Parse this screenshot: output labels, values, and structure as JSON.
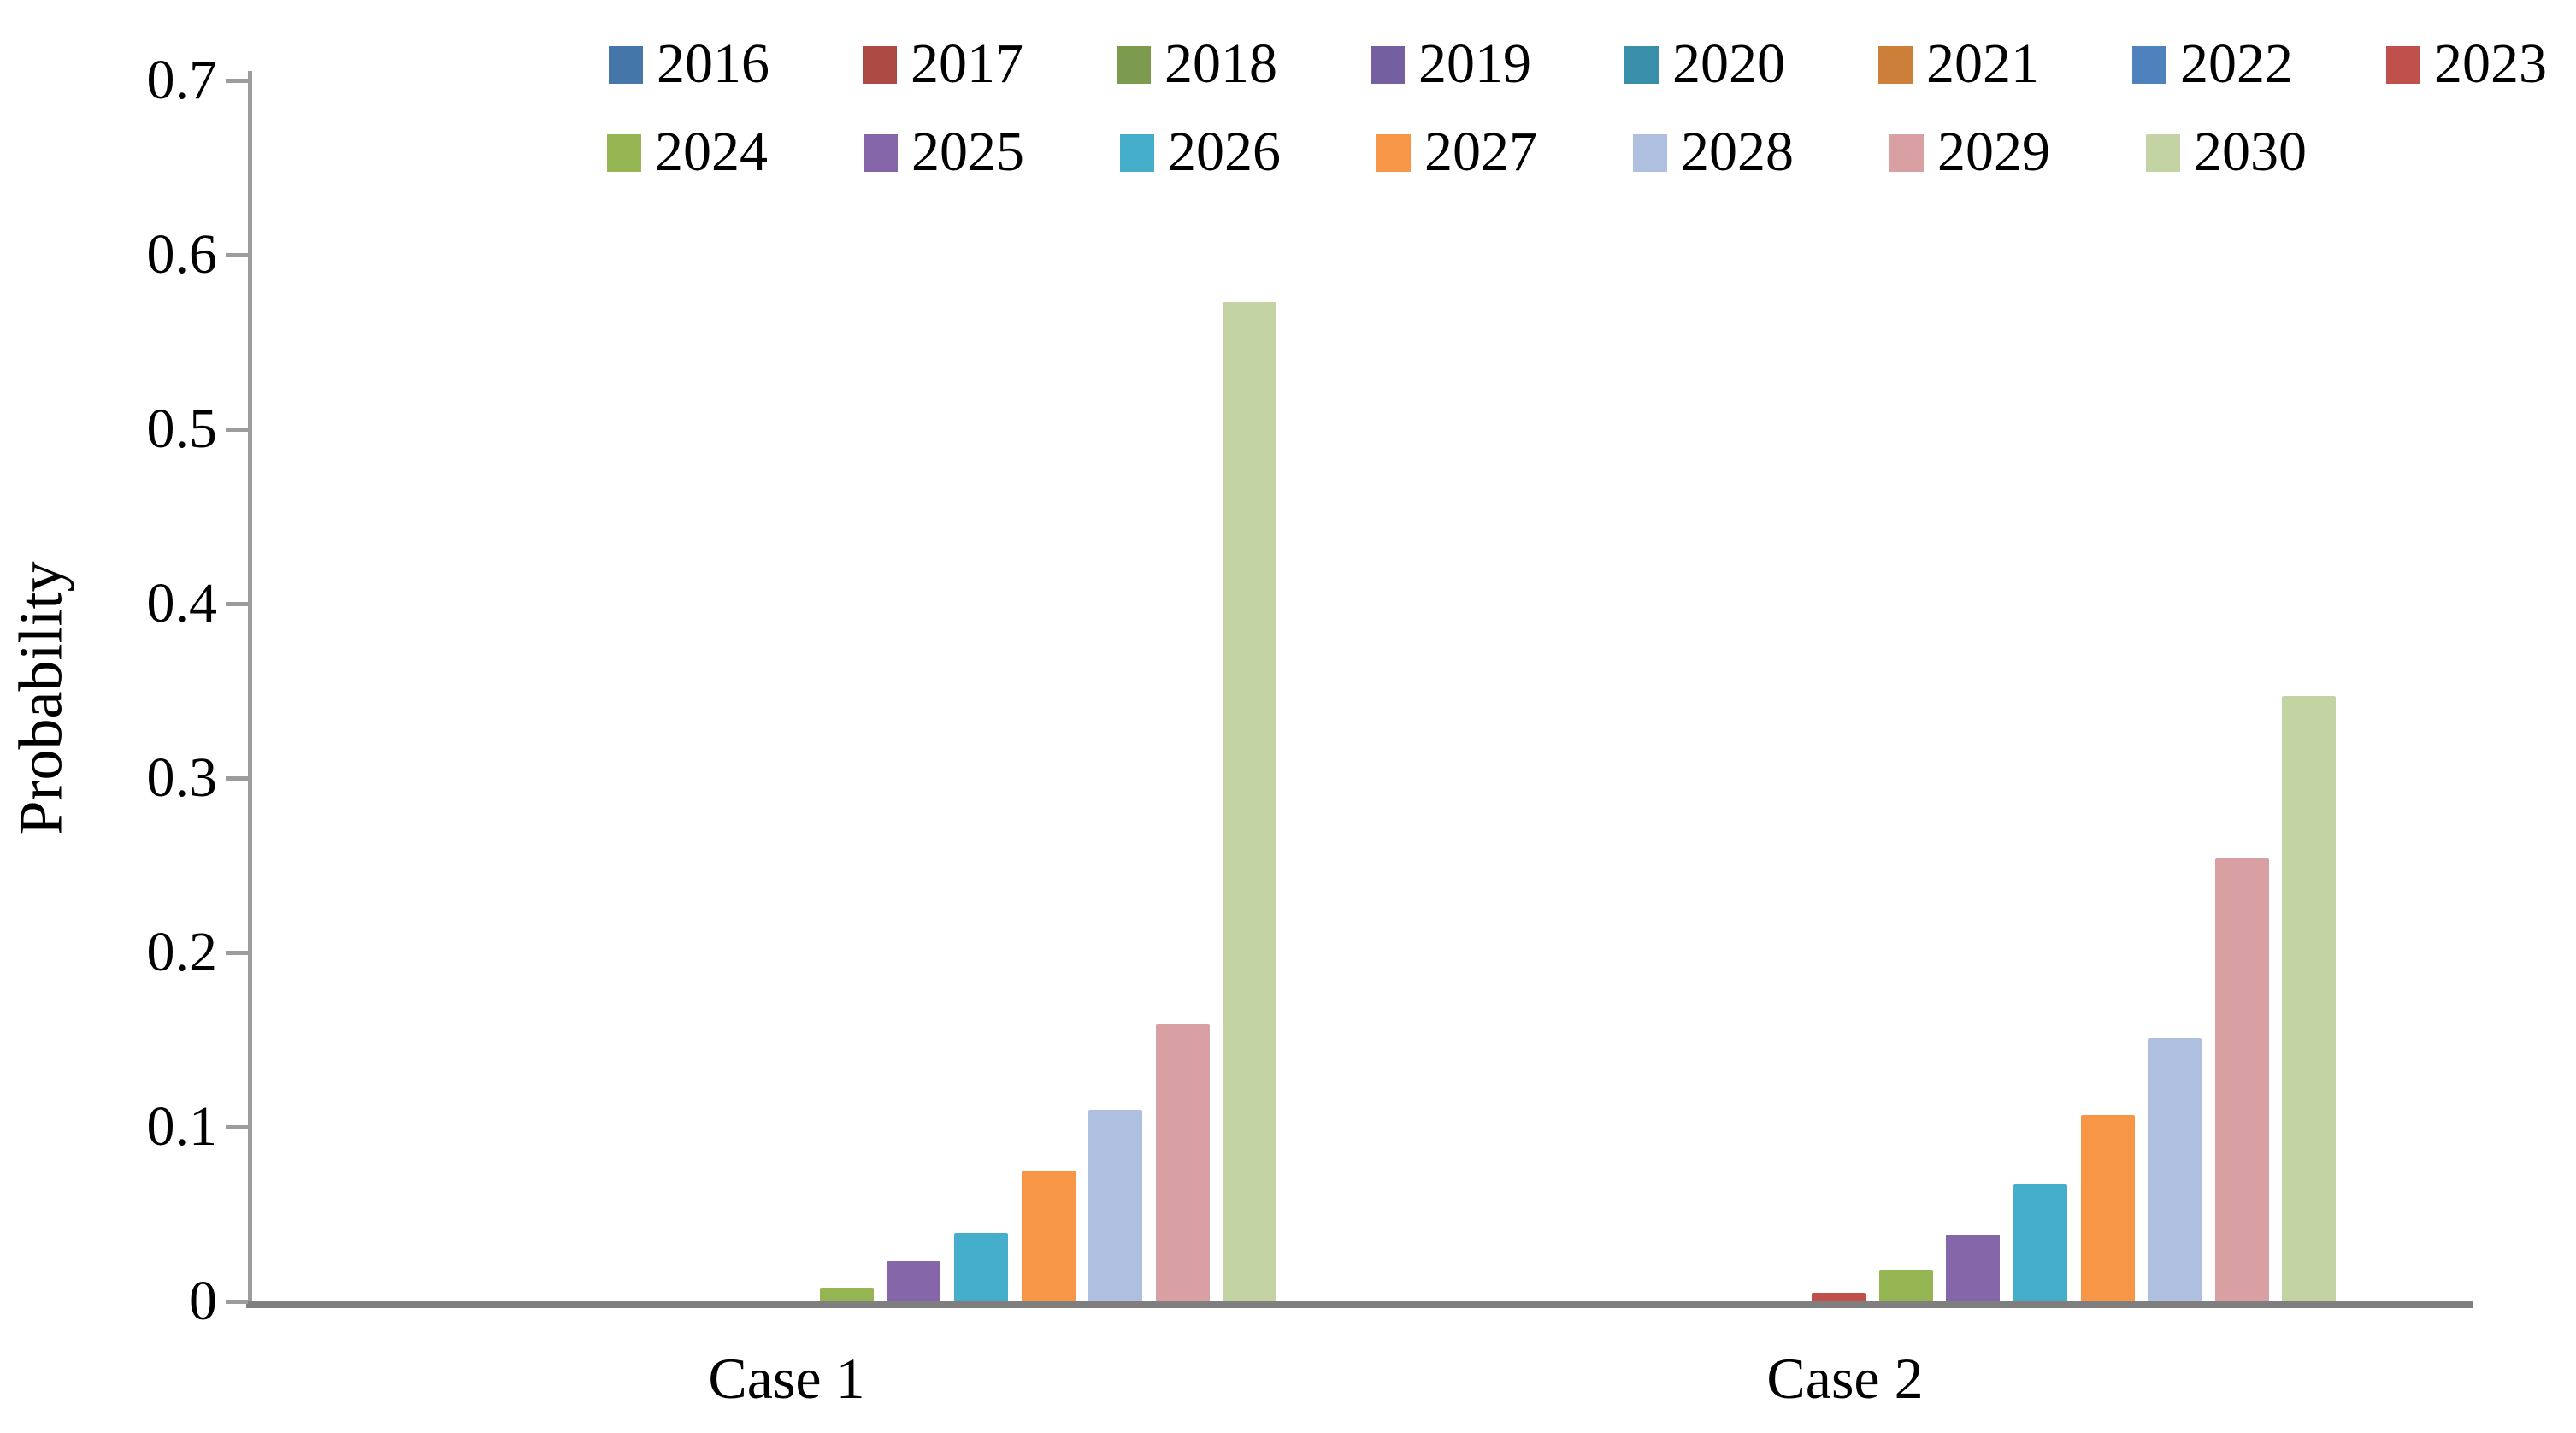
{
  "chart_data": {
    "type": "bar",
    "title": "",
    "xlabel": "",
    "ylabel": "Probability",
    "ylim": [
      0,
      0.7
    ],
    "grid": false,
    "legend_position": "top",
    "categories": [
      "Case 1",
      "Case 2"
    ],
    "y_ticks": [
      {
        "value": 0.0,
        "label": "0"
      },
      {
        "value": 0.1,
        "label": "0.1"
      },
      {
        "value": 0.2,
        "label": "0.2"
      },
      {
        "value": 0.3,
        "label": "0.3"
      },
      {
        "value": 0.4,
        "label": "0.4"
      },
      {
        "value": 0.5,
        "label": "0.5"
      },
      {
        "value": 0.6,
        "label": "0.6"
      },
      {
        "value": 0.7,
        "label": "0.7"
      }
    ],
    "series": [
      {
        "name": "2016",
        "color": "#4576A9",
        "values": [
          0,
          0
        ]
      },
      {
        "name": "2017",
        "color": "#AE4A44",
        "values": [
          0,
          0
        ]
      },
      {
        "name": "2018",
        "color": "#7D9B4E",
        "values": [
          0,
          0
        ]
      },
      {
        "name": "2019",
        "color": "#7460A0",
        "values": [
          0,
          0
        ]
      },
      {
        "name": "2020",
        "color": "#3A8FA8",
        "values": [
          0,
          0
        ]
      },
      {
        "name": "2021",
        "color": "#CC7F38",
        "values": [
          0,
          0
        ]
      },
      {
        "name": "2022",
        "color": "#4F81BD",
        "values": [
          0,
          0
        ]
      },
      {
        "name": "2023",
        "color": "#BF504C",
        "values": [
          0,
          0.005
        ]
      },
      {
        "name": "2024",
        "color": "#94B552",
        "values": [
          0.008,
          0.018
        ]
      },
      {
        "name": "2025",
        "color": "#8566A8",
        "values": [
          0.023,
          0.038
        ]
      },
      {
        "name": "2026",
        "color": "#45AECB",
        "values": [
          0.039,
          0.067
        ]
      },
      {
        "name": "2027",
        "color": "#F79646",
        "values": [
          0.075,
          0.107
        ]
      },
      {
        "name": "2028",
        "color": "#AEBFE0",
        "values": [
          0.11,
          0.151
        ]
      },
      {
        "name": "2029",
        "color": "#D9A0A3",
        "values": [
          0.159,
          0.254
        ]
      },
      {
        "name": "2030",
        "color": "#C4D3A3",
        "values": [
          0.573,
          0.347
        ]
      }
    ]
  }
}
